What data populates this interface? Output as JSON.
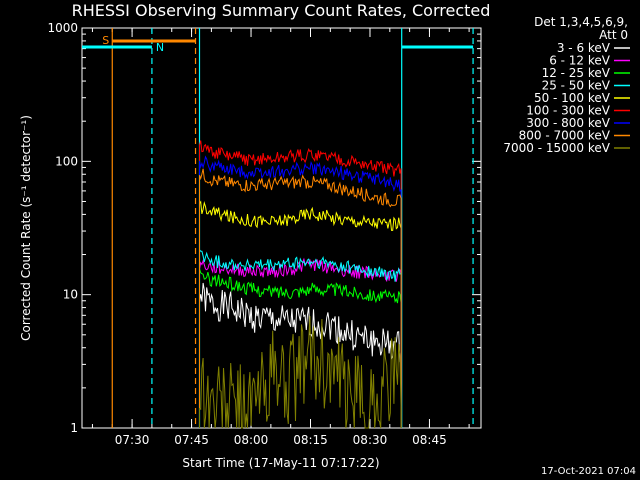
{
  "chart_data": {
    "type": "line",
    "title": "RHESSI Observing Summary Count Rates, Corrected",
    "xlabel": "Start Time (17-May-11 07:17:22)",
    "ylabel": "Corrected Count Rate (s⁻¹ detector⁻¹)",
    "y_scale": "log",
    "ylim": [
      1,
      1000
    ],
    "y_ticks": [
      1,
      10,
      100,
      1000
    ],
    "y_tick_labels": [
      "1",
      "10",
      "100",
      "1000"
    ],
    "x_range": [
      "07:17:22",
      "08:58:00"
    ],
    "x_ticks": [
      "07:30",
      "07:45",
      "08:00",
      "08:15",
      "08:30",
      "08:45"
    ],
    "legend_header": [
      "Det 1,3,4,5,6,9,",
      "Att 0"
    ],
    "legend_position": "right",
    "footer_date": "17-Oct-2021 07:04",
    "series": [
      {
        "name": "3 - 6 keV",
        "color": "#ffffff",
        "x": [
          "07:47",
          "07:50",
          "07:55",
          "08:00",
          "08:05",
          "08:10",
          "08:15",
          "08:20",
          "08:25",
          "08:30",
          "08:35",
          "08:38"
        ],
        "y": [
          10,
          8.5,
          8,
          6.8,
          6.5,
          6.2,
          6.2,
          6.0,
          5.0,
          4.5,
          4.2,
          4.0
        ]
      },
      {
        "name": "6 - 12 keV",
        "color": "#ff00ff",
        "x": [
          "07:47",
          "07:50",
          "07:55",
          "08:00",
          "08:05",
          "08:10",
          "08:15",
          "08:20",
          "08:25",
          "08:30",
          "08:35",
          "08:38"
        ],
        "y": [
          17,
          16,
          15.5,
          15,
          15,
          15.5,
          17,
          16,
          15,
          14.5,
          14,
          14
        ]
      },
      {
        "name": "12 - 25 keV",
        "color": "#00ff00",
        "x": [
          "07:47",
          "07:50",
          "07:55",
          "08:00",
          "08:05",
          "08:10",
          "08:15",
          "08:20",
          "08:25",
          "08:30",
          "08:35",
          "08:38"
        ],
        "y": [
          14,
          13,
          12,
          11,
          10.5,
          10.5,
          11,
          11,
          10.5,
          10,
          9.5,
          9.5
        ]
      },
      {
        "name": "25 - 50 keV",
        "color": "#00ffff",
        "x": [
          "07:47",
          "07:50",
          "07:55",
          "08:00",
          "08:05",
          "08:10",
          "08:15",
          "08:20",
          "08:25",
          "08:30",
          "08:35",
          "08:38"
        ],
        "y": [
          20,
          18,
          17,
          16.5,
          16.5,
          17,
          17.5,
          17,
          16,
          15,
          14,
          14
        ]
      },
      {
        "name": "50 - 100 keV",
        "color": "#ffff00",
        "x": [
          "07:47",
          "07:50",
          "07:55",
          "08:00",
          "08:05",
          "08:10",
          "08:15",
          "08:20",
          "08:25",
          "08:30",
          "08:35",
          "08:38"
        ],
        "y": [
          46,
          42,
          38,
          36,
          35,
          37,
          41,
          38,
          36,
          35,
          34,
          34
        ]
      },
      {
        "name": "100 - 300 keV",
        "color": "#ff0000",
        "x": [
          "07:47",
          "07:50",
          "07:55",
          "08:00",
          "08:05",
          "08:10",
          "08:15",
          "08:20",
          "08:25",
          "08:30",
          "08:35",
          "08:38"
        ],
        "y": [
          130,
          118,
          108,
          103,
          103,
          108,
          112,
          108,
          100,
          92,
          87,
          85
        ]
      },
      {
        "name": "300 - 800 keV",
        "color": "#0000ff",
        "x": [
          "07:47",
          "07:50",
          "07:55",
          "08:00",
          "08:05",
          "08:10",
          "08:15",
          "08:20",
          "08:25",
          "08:30",
          "08:35",
          "08:38"
        ],
        "y": [
          102,
          93,
          86,
          83,
          83,
          86,
          88,
          85,
          80,
          74,
          68,
          65
        ]
      },
      {
        "name": "800 - 7000 keV",
        "color": "#ff8800",
        "x": [
          "07:47",
          "07:50",
          "07:55",
          "08:00",
          "08:05",
          "08:10",
          "08:15",
          "08:20",
          "08:25",
          "08:30",
          "08:35",
          "08:38"
        ],
        "y": [
          82,
          73,
          68,
          66,
          67,
          69,
          70,
          66,
          60,
          55,
          51,
          50
        ]
      },
      {
        "name": "7000 - 15000 keV",
        "color": "#808000",
        "x": [
          "07:47",
          "07:50",
          "07:55",
          "08:00",
          "08:05",
          "08:10",
          "08:15",
          "08:20",
          "08:25",
          "08:30",
          "08:35",
          "08:38"
        ],
        "y": [
          2.3,
          1.5,
          1.5,
          1.4,
          2.5,
          2.2,
          3.5,
          2.8,
          1.6,
          1.5,
          2.5,
          2.0
        ]
      }
    ],
    "markers": [
      {
        "label": "S",
        "time_start": "07:25",
        "time_end": "07:46",
        "color": "#ff8800"
      },
      {
        "label": "N",
        "time_start": "07:17:22",
        "time_end": "07:35",
        "color": "#00ffff"
      },
      {
        "label": "",
        "time_start": "08:38",
        "time_end": "08:56",
        "color": "#00ffff"
      }
    ],
    "vertical_lines": [
      {
        "time": "07:25",
        "color": "#ff8800",
        "style": "solid"
      },
      {
        "time": "07:35",
        "color": "#00ffff",
        "style": "dashed"
      },
      {
        "time": "07:46",
        "color": "#ff8800",
        "style": "dashed"
      },
      {
        "time": "07:47",
        "color": "#00ffff",
        "style": "solid"
      },
      {
        "time": "08:38",
        "color": "#00ffff",
        "style": "solid"
      },
      {
        "time": "08:56",
        "color": "#00ffff",
        "style": "dashed"
      }
    ]
  }
}
